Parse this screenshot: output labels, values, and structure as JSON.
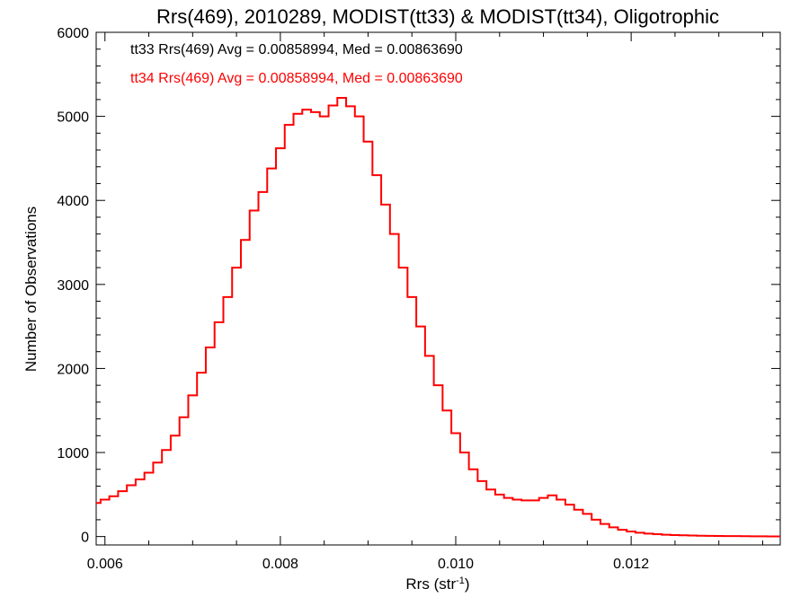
{
  "chart_data": {
    "type": "line",
    "title": "Rrs(469), 2010289, MODIST(tt33) & MODIST(tt34), Oligotrophic",
    "xlabel": "Rrs (str",
    "xlabel_sup": "-1",
    "xlabel_close": ")",
    "ylabel": "Number of Observations",
    "xlim": [
      0.0059,
      0.0137
    ],
    "ylim": [
      -100,
      6000
    ],
    "x_ticks": [
      0.006,
      0.008,
      0.01,
      0.012
    ],
    "x_tick_labels": [
      "0.006",
      "0.008",
      "0.010",
      "0.012"
    ],
    "y_ticks": [
      0,
      1000,
      2000,
      3000,
      4000,
      5000,
      6000
    ],
    "y_tick_labels": [
      "0",
      "1000",
      "2000",
      "3000",
      "4000",
      "5000",
      "6000"
    ],
    "grid": false,
    "annotations": [
      {
        "text": "tt33 Rrs(469) Avg = 0.00858994, Med = 0.00863690",
        "color": "#000000"
      },
      {
        "text": "tt34 Rrs(469) Avg = 0.00858994, Med = 0.00863690",
        "color": "#ff0000"
      }
    ],
    "series": [
      {
        "color": "#ff0000",
        "x": [
          0.0059,
          0.006,
          0.0061,
          0.0062,
          0.0063,
          0.0064,
          0.0065,
          0.0066,
          0.0067,
          0.0068,
          0.0069,
          0.007,
          0.0071,
          0.0072,
          0.0073,
          0.0074,
          0.0075,
          0.0076,
          0.0077,
          0.0078,
          0.0079,
          0.008,
          0.0081,
          0.0082,
          0.0083,
          0.0084,
          0.0085,
          0.0086,
          0.0087,
          0.0088,
          0.0089,
          0.009,
          0.0091,
          0.0092,
          0.0093,
          0.0094,
          0.0095,
          0.0096,
          0.0097,
          0.0098,
          0.0099,
          0.01,
          0.0101,
          0.0102,
          0.0103,
          0.0104,
          0.0105,
          0.0106,
          0.0107,
          0.0108,
          0.0109,
          0.011,
          0.0111,
          0.0112,
          0.0113,
          0.0114,
          0.0115,
          0.0116,
          0.0117,
          0.0118,
          0.0119,
          0.012,
          0.0121,
          0.0122,
          0.0123,
          0.0124,
          0.0125,
          0.0126,
          0.0127,
          0.0128,
          0.0129,
          0.013,
          0.0131,
          0.0132,
          0.0133,
          0.0134,
          0.0135,
          0.0136,
          0.0137
        ],
        "y": [
          400,
          440,
          480,
          540,
          610,
          680,
          760,
          880,
          1030,
          1200,
          1420,
          1680,
          1950,
          2250,
          2550,
          2850,
          3200,
          3530,
          3880,
          4100,
          4380,
          4620,
          4900,
          5030,
          5080,
          5050,
          5000,
          5130,
          5220,
          5120,
          5000,
          4700,
          4300,
          3950,
          3600,
          3200,
          2850,
          2500,
          2150,
          1800,
          1500,
          1230,
          1000,
          800,
          660,
          560,
          500,
          460,
          440,
          430,
          430,
          460,
          490,
          440,
          380,
          320,
          270,
          200,
          150,
          110,
          80,
          60,
          45,
          35,
          28,
          22,
          18,
          15,
          12,
          10,
          8,
          7,
          6,
          5,
          4,
          3,
          3,
          2,
          2
        ]
      }
    ]
  }
}
